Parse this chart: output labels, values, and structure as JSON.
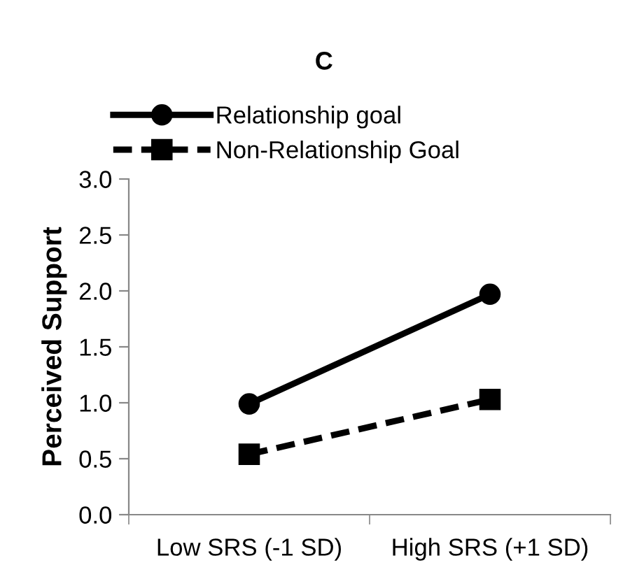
{
  "chart_data": {
    "type": "line",
    "title": "C",
    "ylabel": "Perceived Support",
    "categories": [
      "Low SRS (-1 SD)",
      "High SRS (+1 SD)"
    ],
    "series": [
      {
        "name": "Relationship goal",
        "color": "#000000",
        "values": [
          0.99,
          1.97
        ],
        "marker": "circle",
        "line_style": "solid"
      },
      {
        "name": "Non-Relationship Goal",
        "color": "#000000",
        "values": [
          0.54,
          1.03
        ],
        "marker": "square",
        "line_style": "dashed"
      }
    ],
    "ylim": [
      0,
      3.0
    ],
    "yticks": [
      {
        "value": 0,
        "label": "0.0"
      },
      {
        "value": 0.5,
        "label": "0.5"
      },
      {
        "value": 1.0,
        "label": "1.0"
      },
      {
        "value": 1.5,
        "label": "1.5"
      },
      {
        "value": 2.0,
        "label": "2.0"
      },
      {
        "value": 2.5,
        "label": "2.5"
      },
      {
        "value": 3.0,
        "label": "3.0"
      }
    ],
    "grid": false,
    "legend": "top"
  }
}
